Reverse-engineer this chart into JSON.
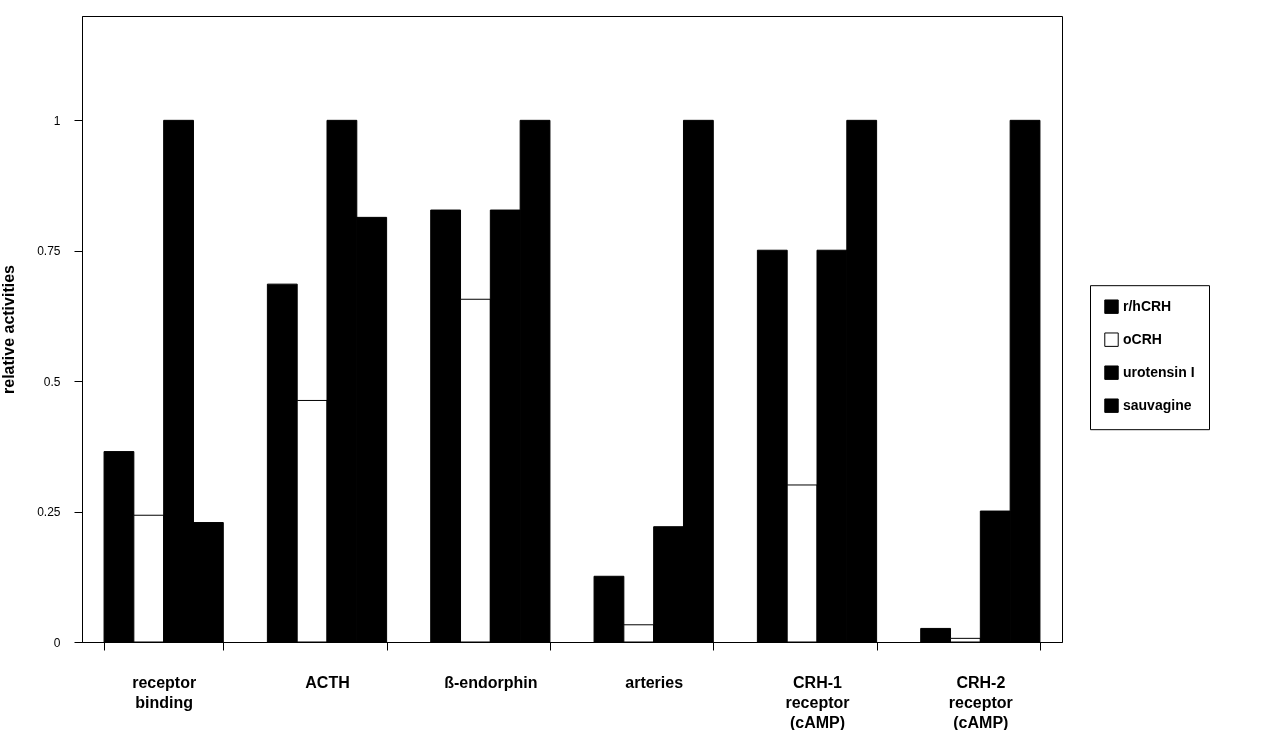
{
  "chart_data": {
    "type": "bar",
    "ylabel": "relative activities",
    "categories": [
      "receptor binding",
      "ACTH",
      "ß-endorphin",
      "arteries",
      "CRH-1 receptor (cAMP)",
      "CRH-2 receptor (cAMP)"
    ],
    "series": [
      {
        "name": "r/hCRH",
        "color": "#000000",
        "values": [
          0.365,
          0.686,
          0.828,
          0.126,
          0.751,
          0.026
        ]
      },
      {
        "name": "oCRH",
        "color": "#ffffff",
        "values": [
          0.243,
          0.463,
          0.657,
          0.033,
          0.301,
          0.007
        ]
      },
      {
        "name": "urotensin I",
        "color": "#000000",
        "values": [
          1,
          1,
          0.828,
          0.221,
          0.751,
          0.251
        ]
      },
      {
        "name": "sauvagine",
        "color": "#000000",
        "values": [
          0.229,
          0.814,
          1,
          1,
          1,
          1
        ]
      }
    ],
    "ylim": [
      0,
      1.2
    ],
    "yticks": [
      0,
      0.25,
      0.5,
      0.75,
      1
    ],
    "grid": false,
    "legend": "right"
  }
}
